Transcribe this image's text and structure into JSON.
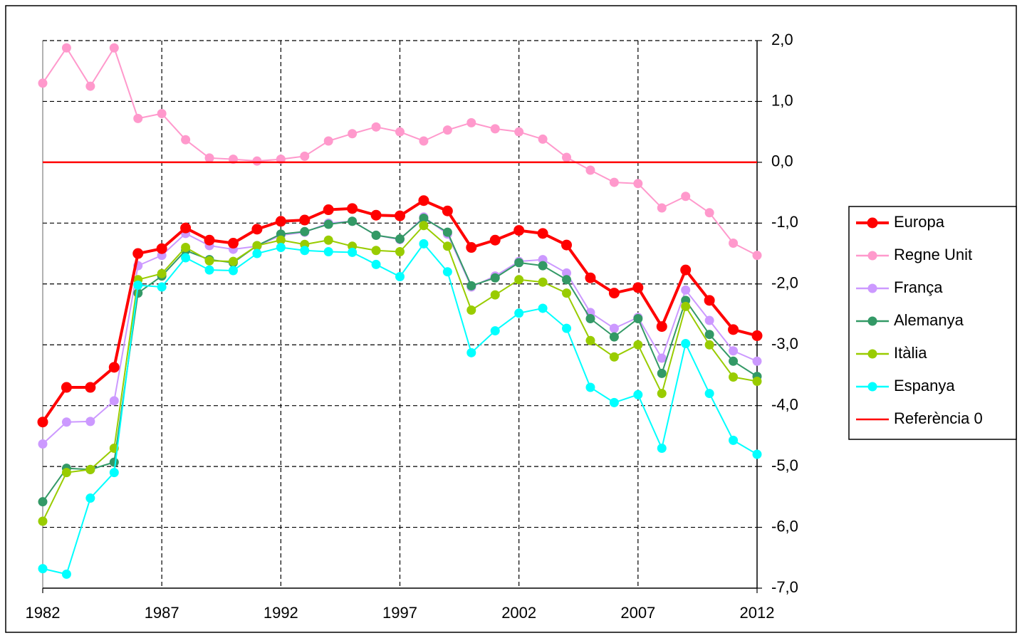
{
  "chart_data": {
    "type": "line",
    "x": [
      1982,
      1983,
      1984,
      1985,
      1986,
      1987,
      1988,
      1989,
      1990,
      1991,
      1992,
      1993,
      1994,
      1995,
      1996,
      1997,
      1998,
      1999,
      2000,
      2001,
      2002,
      2003,
      2004,
      2005,
      2006,
      2007,
      2008,
      2009,
      2010,
      2011,
      2012
    ],
    "xlim": [
      1982,
      2012
    ],
    "xticks": [
      1982,
      1987,
      1992,
      1997,
      2002,
      2007,
      2012
    ],
    "ylim": [
      -7,
      2
    ],
    "yticks": [
      {
        "value": 2,
        "label": "2,0"
      },
      {
        "value": 1,
        "label": "1,0"
      },
      {
        "value": 0,
        "label": "0,0"
      },
      {
        "value": -1,
        "label": "-1,0"
      },
      {
        "value": -2,
        "label": "-2,0"
      },
      {
        "value": -3,
        "label": "-3,0"
      },
      {
        "value": -4,
        "label": "-4,0"
      },
      {
        "value": -5,
        "label": "-5,0"
      },
      {
        "value": -6,
        "label": "-6,0"
      },
      {
        "value": -7,
        "label": "-7,0"
      }
    ],
    "grid": true,
    "legend": "right",
    "series": [
      {
        "name": "Regne Unit",
        "color": "#ff99cc",
        "markers": true,
        "values": [
          1.3,
          1.88,
          1.25,
          1.88,
          0.72,
          0.8,
          0.37,
          0.07,
          0.05,
          0.02,
          0.05,
          0.1,
          0.35,
          0.47,
          0.58,
          0.5,
          0.35,
          0.53,
          0.65,
          0.55,
          0.5,
          0.38,
          0.08,
          -0.13,
          -0.33,
          -0.35,
          -0.75,
          -0.56,
          -0.83,
          -1.33,
          -1.53
        ]
      },
      {
        "name": "França",
        "color": "#cc99ff",
        "markers": true,
        "values": [
          -4.63,
          -4.27,
          -4.26,
          -3.92,
          -1.7,
          -1.53,
          -1.17,
          -1.37,
          -1.43,
          -1.38,
          -1.2,
          -1.15,
          -1.0,
          -0.97,
          -1.2,
          -1.27,
          -0.9,
          -1.18,
          -2.05,
          -1.87,
          -1.63,
          -1.6,
          -1.82,
          -2.47,
          -2.73,
          -2.55,
          -3.22,
          -2.1,
          -2.6,
          -3.1,
          -3.27
        ]
      },
      {
        "name": "Alemanya",
        "color": "#339966",
        "markers": true,
        "values": [
          -5.58,
          -5.03,
          -5.05,
          -4.93,
          -2.15,
          -1.87,
          -1.45,
          -1.6,
          -1.65,
          -1.37,
          -1.18,
          -1.14,
          -1.02,
          -0.97,
          -1.2,
          -1.26,
          -0.92,
          -1.15,
          -2.03,
          -1.9,
          -1.65,
          -1.7,
          -1.93,
          -2.57,
          -2.87,
          -2.57,
          -3.47,
          -2.27,
          -2.83,
          -3.27,
          -3.52
        ]
      },
      {
        "name": "Itàlia",
        "color": "#99cc00",
        "markers": true,
        "values": [
          -5.9,
          -5.1,
          -5.05,
          -4.7,
          -1.93,
          -1.83,
          -1.4,
          -1.62,
          -1.63,
          -1.37,
          -1.28,
          -1.35,
          -1.28,
          -1.38,
          -1.45,
          -1.47,
          -1.04,
          -1.38,
          -2.43,
          -2.18,
          -1.93,
          -1.97,
          -2.15,
          -2.93,
          -3.2,
          -3.0,
          -3.8,
          -2.37,
          -3.0,
          -3.53,
          -3.6
        ]
      },
      {
        "name": "Espanya",
        "color": "#00ffff",
        "markers": true,
        "values": [
          -6.68,
          -6.77,
          -5.52,
          -5.1,
          -2.02,
          -2.05,
          -1.57,
          -1.77,
          -1.78,
          -1.5,
          -1.4,
          -1.45,
          -1.47,
          -1.48,
          -1.68,
          -1.88,
          -1.34,
          -1.8,
          -3.13,
          -2.77,
          -2.48,
          -2.4,
          -2.73,
          -3.7,
          -3.95,
          -3.82,
          -4.7,
          -2.98,
          -3.8,
          -4.57,
          -4.8
        ]
      },
      {
        "name": "Referència 0",
        "color": "#ff0000",
        "markers": false,
        "values": [
          0,
          0,
          0,
          0,
          0,
          0,
          0,
          0,
          0,
          0,
          0,
          0,
          0,
          0,
          0,
          0,
          0,
          0,
          0,
          0,
          0,
          0,
          0,
          0,
          0,
          0,
          0,
          0,
          0,
          0,
          0
        ]
      },
      {
        "name": "Europa",
        "color": "#ff0000",
        "markers": true,
        "bold": true,
        "values": [
          -4.27,
          -3.7,
          -3.7,
          -3.37,
          -1.5,
          -1.42,
          -1.08,
          -1.28,
          -1.33,
          -1.1,
          -0.97,
          -0.95,
          -0.78,
          -0.76,
          -0.87,
          -0.88,
          -0.63,
          -0.8,
          -1.4,
          -1.28,
          -1.12,
          -1.17,
          -1.36,
          -1.9,
          -2.15,
          -2.06,
          -2.7,
          -1.77,
          -2.27,
          -2.75,
          -2.85
        ]
      }
    ],
    "legend_order": [
      "Europa",
      "Regne Unit",
      "França",
      "Alemanya",
      "Itàlia",
      "Espanya",
      "Referència 0"
    ]
  }
}
